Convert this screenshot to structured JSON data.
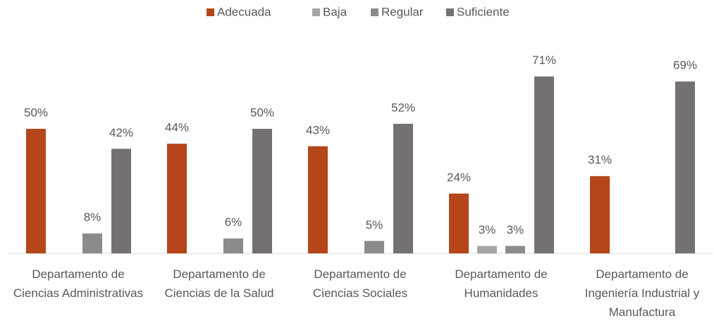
{
  "chart_data": {
    "type": "bar",
    "categories": [
      "Departamento de Ciencias Administrativas",
      "Departamento de Ciencias de la Salud",
      "Departamento de Ciencias Sociales",
      "Departamento de Humanidades",
      "Departamento de Ingeniería Industrial y Manufactura"
    ],
    "series": [
      {
        "name": "Adecuada",
        "color": "#b4461a",
        "values": [
          50,
          44,
          43,
          24,
          31
        ],
        "value_labels": [
          "50%",
          "44%",
          "43%",
          "24%",
          "31%"
        ]
      },
      {
        "name": "Baja",
        "color": "#a6a6a6",
        "values": [
          null,
          null,
          null,
          3,
          null
        ],
        "value_labels": [
          null,
          null,
          null,
          "3%",
          null
        ]
      },
      {
        "name": "Regular",
        "color": "#8b8b8b",
        "values": [
          8,
          6,
          5,
          3,
          null
        ],
        "value_labels": [
          "8%",
          "6%",
          "5%",
          "3%",
          null
        ]
      },
      {
        "name": "Suficiente",
        "color": "#767171",
        "values": [
          42,
          50,
          52,
          71,
          69
        ],
        "value_labels": [
          "42%",
          "50%",
          "52%",
          "71%",
          "69%"
        ]
      }
    ],
    "legend": "top"
  }
}
